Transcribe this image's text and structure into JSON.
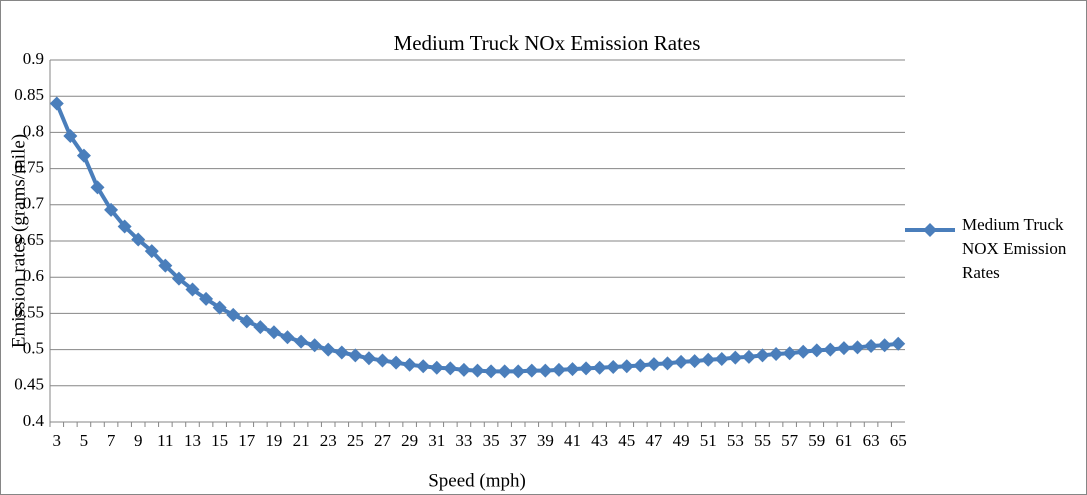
{
  "chart_data": {
    "type": "line",
    "title": "Medium Truck NOx Emission Rates",
    "x_label": "Speed (mph)",
    "y_label": "Emission rates (grams/mile)",
    "categories": [
      3,
      null,
      5,
      null,
      7,
      null,
      9,
      null,
      11,
      null,
      13,
      null,
      15,
      null,
      17,
      null,
      19,
      null,
      21,
      null,
      23,
      null,
      25,
      null,
      27,
      null,
      29,
      null,
      31,
      null,
      33,
      null,
      35,
      null,
      37,
      null,
      39,
      null,
      41,
      null,
      43,
      null,
      45,
      null,
      47,
      null,
      49,
      null,
      51,
      null,
      53,
      null,
      55,
      null,
      57,
      null,
      59,
      null,
      61,
      null,
      63,
      null,
      65
    ],
    "series": [
      {
        "name": "Medium Truck NOX Emission Rates",
        "color": "#4a7ebb",
        "values": [
          0.84,
          0.795,
          0.768,
          0.724,
          0.693,
          0.67,
          0.652,
          0.636,
          0.616,
          0.598,
          0.583,
          0.57,
          0.558,
          0.548,
          0.539,
          0.531,
          0.524,
          0.517,
          0.511,
          0.506,
          0.5,
          0.496,
          0.492,
          0.488,
          0.485,
          0.482,
          0.479,
          0.477,
          0.475,
          0.474,
          0.472,
          0.471,
          0.47,
          0.47,
          0.47,
          0.471,
          0.471,
          0.472,
          0.473,
          0.474,
          0.475,
          0.476,
          0.477,
          0.478,
          0.48,
          0.481,
          0.483,
          0.484,
          0.486,
          0.487,
          0.489,
          0.49,
          0.492,
          0.494,
          0.495,
          0.497,
          0.499,
          0.5,
          0.502,
          0.503,
          0.505,
          0.506,
          0.508
        ]
      }
    ],
    "ylim": [
      0.4,
      0.9
    ],
    "yticks": [
      0.4,
      0.45,
      0.5,
      0.55,
      0.6,
      0.65,
      0.7,
      0.75,
      0.8,
      0.85,
      0.9
    ],
    "grid": true,
    "legend": "right"
  }
}
